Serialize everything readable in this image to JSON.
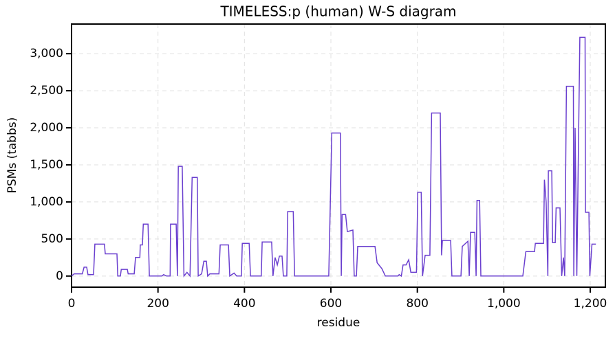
{
  "chart_data": {
    "type": "line",
    "title": "TIMELESS:p (human) W-S diagram",
    "x_label": "residue",
    "y_label": "PSMs (tabbs)",
    "color": "#6a3fcf",
    "grid": true,
    "xlim": [
      0,
      1235
    ],
    "ylim": [
      -150,
      3400
    ],
    "xticks": [
      0,
      200,
      400,
      600,
      800,
      {
        "value": 1000,
        "label": "1,000"
      },
      {
        "value": 1200,
        "label": "1,200"
      }
    ],
    "yticks": [
      0,
      500,
      {
        "value": 1000,
        "label": "1,000"
      },
      {
        "value": 1500,
        "label": "1,500"
      },
      {
        "value": 2000,
        "label": "2,000"
      },
      {
        "value": 2500,
        "label": "2,500"
      },
      {
        "value": 3000,
        "label": "3,000"
      }
    ],
    "x": [
      0,
      6,
      25,
      29,
      35,
      38,
      51,
      54,
      76,
      78,
      105,
      107,
      113,
      115,
      129,
      131,
      145,
      148,
      158,
      159,
      164,
      166,
      177,
      180,
      209,
      213,
      220,
      228,
      229,
      242,
      245,
      247,
      256,
      260,
      267,
      274,
      279,
      291,
      293,
      301,
      306,
      312,
      315,
      320,
      341,
      344,
      363,
      366,
      376,
      382,
      393,
      395,
      411,
      414,
      439,
      441,
      463,
      466,
      471,
      476,
      481,
      487,
      490,
      498,
      500,
      513,
      516,
      595,
      602,
      622,
      624,
      626,
      634,
      638,
      651,
      654,
      659,
      662,
      702,
      707,
      718,
      726,
      755,
      758,
      763,
      767,
      774,
      780,
      785,
      798,
      801,
      809,
      812,
      818,
      829,
      833,
      853,
      856,
      858,
      877,
      880,
      901,
      904,
      917,
      920,
      923,
      933,
      936,
      938,
      944,
      947,
      1044,
      1051,
      1071,
      1073,
      1092,
      1094,
      1098,
      1102,
      1103,
      1111,
      1113,
      1119,
      1121,
      1130,
      1134,
      1138,
      1141,
      1145,
      1161,
      1162,
      1165,
      1169,
      1176,
      1188,
      1189,
      1197,
      1199,
      1204,
      1213
    ],
    "values": [
      0,
      30,
      30,
      120,
      120,
      20,
      20,
      430,
      430,
      300,
      300,
      0,
      0,
      90,
      90,
      30,
      30,
      250,
      250,
      420,
      420,
      700,
      700,
      0,
      0,
      20,
      0,
      0,
      700,
      700,
      0,
      1480,
      1480,
      0,
      50,
      0,
      1330,
      1330,
      0,
      30,
      200,
      200,
      0,
      30,
      30,
      420,
      420,
      0,
      40,
      0,
      0,
      440,
      440,
      0,
      0,
      460,
      460,
      0,
      250,
      150,
      270,
      270,
      0,
      0,
      870,
      870,
      0,
      0,
      1930,
      1930,
      0,
      830,
      830,
      600,
      620,
      0,
      0,
      400,
      400,
      180,
      100,
      0,
      0,
      20,
      0,
      150,
      150,
      220,
      50,
      50,
      1130,
      1130,
      0,
      280,
      280,
      2200,
      2200,
      280,
      480,
      480,
      0,
      0,
      400,
      470,
      0,
      590,
      590,
      0,
      1020,
      1020,
      0,
      0,
      330,
      330,
      440,
      440,
      1300,
      1000,
      0,
      1420,
      1420,
      450,
      450,
      920,
      920,
      0,
      250,
      0,
      2560,
      2560,
      0,
      2000,
      0,
      3220,
      3220,
      860,
      860,
      0,
      430,
      430
    ]
  }
}
